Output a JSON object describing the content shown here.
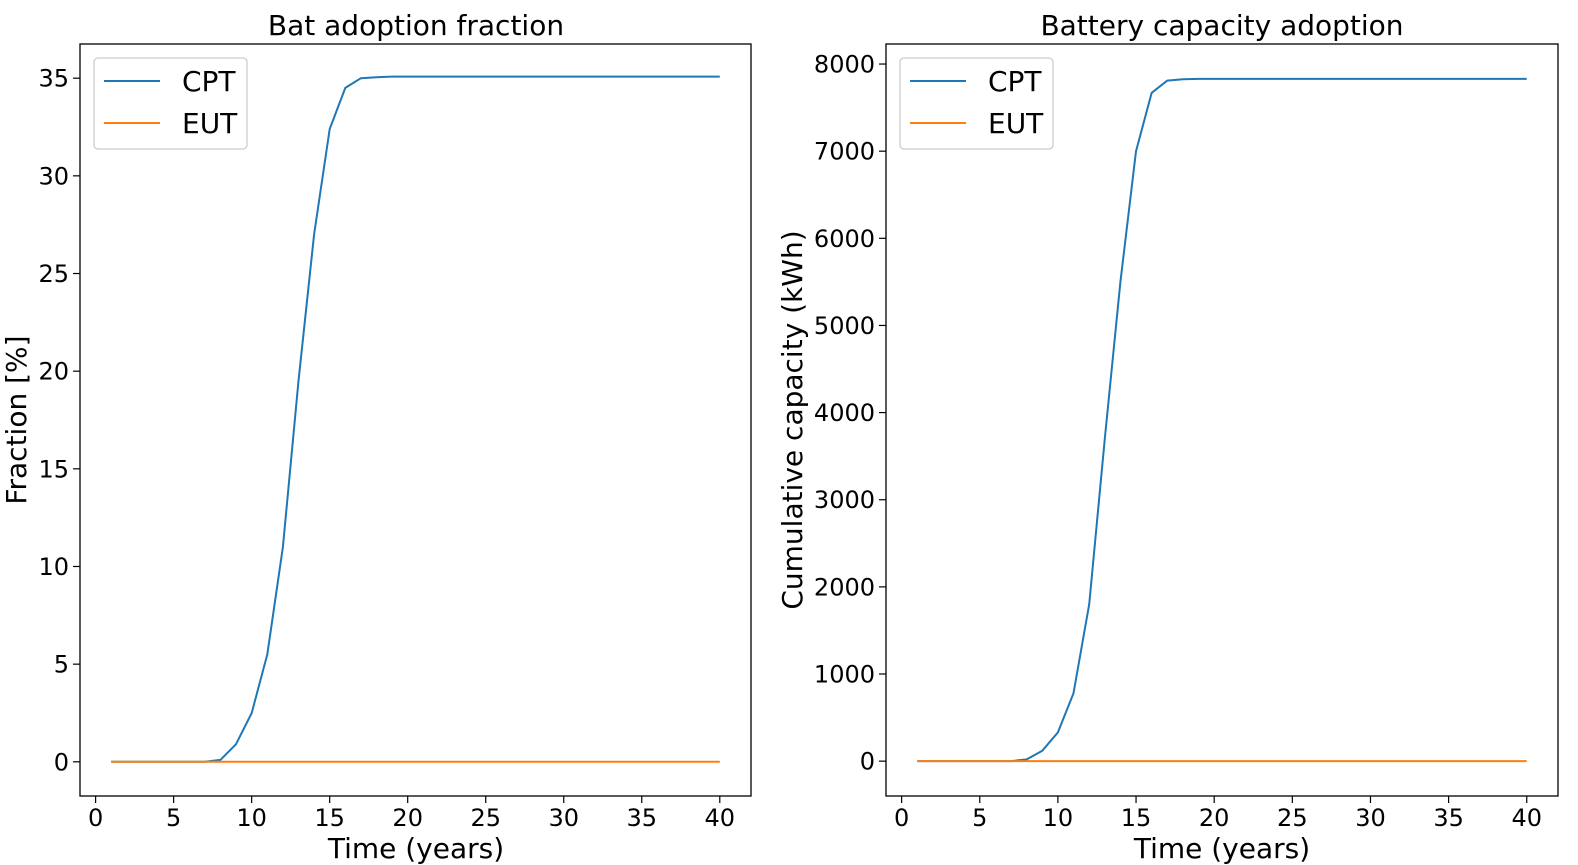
{
  "chart_data": [
    {
      "type": "line",
      "title": "Bat adoption fraction",
      "xlabel": "Time (years)",
      "ylabel": "Fraction [%]",
      "xlim": [
        -1,
        42
      ],
      "ylim": [
        -1.75,
        36.75
      ],
      "xticks": [
        0,
        5,
        10,
        15,
        20,
        25,
        30,
        35,
        40
      ],
      "yticks": [
        0,
        5,
        10,
        15,
        20,
        25,
        30,
        35
      ],
      "grid": false,
      "legend_position": "top-left",
      "x": [
        1,
        2,
        3,
        4,
        5,
        6,
        7,
        8,
        9,
        10,
        11,
        12,
        13,
        14,
        15,
        16,
        17,
        18,
        19,
        20,
        21,
        22,
        23,
        24,
        25,
        26,
        27,
        28,
        29,
        30,
        31,
        32,
        33,
        34,
        35,
        36,
        37,
        38,
        39,
        40
      ],
      "series": [
        {
          "name": "CPT",
          "color": "#1f77b4",
          "values": [
            0,
            0,
            0,
            0,
            0,
            0,
            0,
            0.1,
            0.9,
            2.5,
            5.5,
            11,
            19.5,
            27,
            32.4,
            34.5,
            35,
            35.05,
            35.08,
            35.08,
            35.08,
            35.08,
            35.08,
            35.08,
            35.08,
            35.08,
            35.08,
            35.08,
            35.08,
            35.08,
            35.08,
            35.08,
            35.08,
            35.08,
            35.08,
            35.08,
            35.08,
            35.08,
            35.08,
            35.08
          ]
        },
        {
          "name": "EUT",
          "color": "#ff7f0e",
          "values": [
            0,
            0,
            0,
            0,
            0,
            0,
            0,
            0,
            0,
            0,
            0,
            0,
            0,
            0,
            0,
            0,
            0,
            0,
            0,
            0,
            0,
            0,
            0,
            0,
            0,
            0,
            0,
            0,
            0,
            0,
            0,
            0,
            0,
            0,
            0,
            0,
            0,
            0,
            0,
            0
          ]
        }
      ]
    },
    {
      "type": "line",
      "title": "Battery capacity adoption",
      "xlabel": "Time (years)",
      "ylabel": "Cumulative capacity (kWh)",
      "xlim": [
        -1,
        42
      ],
      "ylim": [
        -400,
        8230
      ],
      "xticks": [
        0,
        5,
        10,
        15,
        20,
        25,
        30,
        35,
        40
      ],
      "yticks": [
        0,
        1000,
        2000,
        3000,
        4000,
        5000,
        6000,
        7000,
        8000
      ],
      "grid": false,
      "legend_position": "top-left",
      "x": [
        1,
        2,
        3,
        4,
        5,
        6,
        7,
        8,
        9,
        10,
        11,
        12,
        13,
        14,
        15,
        16,
        17,
        18,
        19,
        20,
        21,
        22,
        23,
        24,
        25,
        26,
        27,
        28,
        29,
        30,
        31,
        32,
        33,
        34,
        35,
        36,
        37,
        38,
        39,
        40
      ],
      "series": [
        {
          "name": "CPT",
          "color": "#1f77b4",
          "values": [
            0,
            0,
            0,
            0,
            0,
            0,
            0,
            20,
            120,
            330,
            780,
            1800,
            3700,
            5500,
            7000,
            7670,
            7810,
            7825,
            7830,
            7830,
            7830,
            7830,
            7830,
            7830,
            7830,
            7830,
            7830,
            7830,
            7830,
            7830,
            7830,
            7830,
            7830,
            7830,
            7830,
            7830,
            7830,
            7830,
            7830,
            7830
          ]
        },
        {
          "name": "EUT",
          "color": "#ff7f0e",
          "values": [
            0,
            0,
            0,
            0,
            0,
            0,
            0,
            0,
            0,
            0,
            0,
            0,
            0,
            0,
            0,
            0,
            0,
            0,
            0,
            0,
            0,
            0,
            0,
            0,
            0,
            0,
            0,
            0,
            0,
            0,
            0,
            0,
            0,
            0,
            0,
            0,
            0,
            0,
            0,
            0
          ]
        }
      ]
    }
  ]
}
